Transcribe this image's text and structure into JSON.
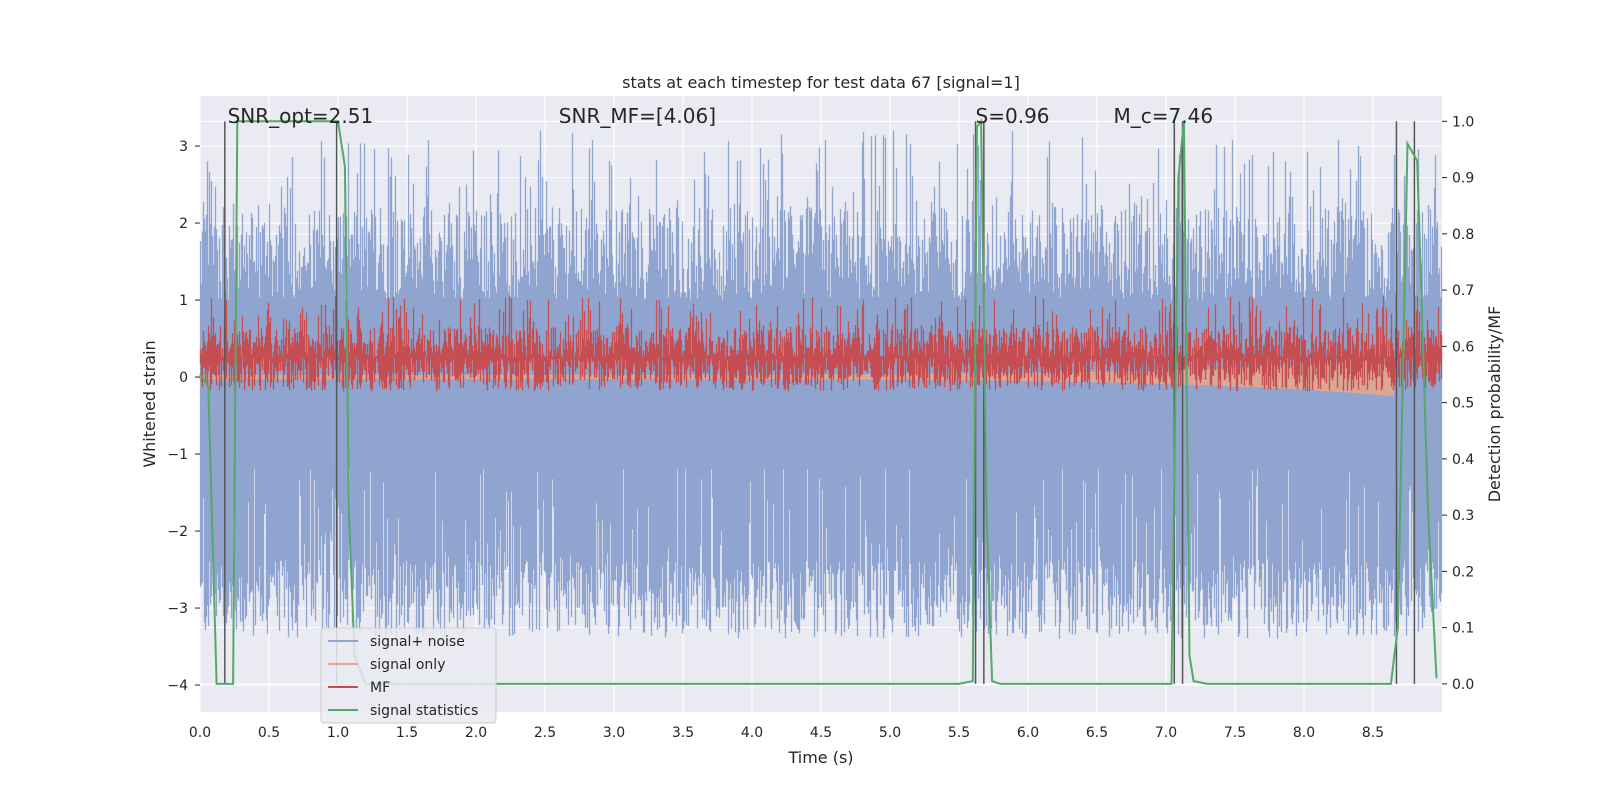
{
  "chart_data": {
    "type": "line",
    "title": "stats at each timestep for test data 67 [signal=1]",
    "xlabel": "Time (s)",
    "ylabel": "Whitened strain",
    "ylabel_right": "Detection probability/MF",
    "xlim": [
      0.0,
      9.0
    ],
    "ylim": [
      -4.35,
      3.65
    ],
    "ylim_right": [
      -0.05,
      1.045
    ],
    "x_ticks": [
      "0.0",
      "0.5",
      "1.0",
      "1.5",
      "2.0",
      "2.5",
      "3.0",
      "3.5",
      "4.0",
      "4.5",
      "5.0",
      "5.5",
      "6.0",
      "6.5",
      "7.0",
      "7.5",
      "8.0",
      "8.5"
    ],
    "y_ticks": [
      "3",
      "2",
      "1",
      "0",
      "−1",
      "−2",
      "−3",
      "−4"
    ],
    "y_ticks_right": [
      "1.0",
      "0.9",
      "0.8",
      "0.7",
      "0.6",
      "0.5",
      "0.4",
      "0.3",
      "0.2",
      "0.1",
      "0.0"
    ],
    "grid": true,
    "legend_position": "lower-left",
    "annotations": [
      {
        "text": "SNR_opt=2.51",
        "x": 0.2
      },
      {
        "text": "SNR_MF=[4.06]",
        "x": 2.6
      },
      {
        "text": "S=0.96",
        "x": 5.62
      },
      {
        "text": "M_c=7.46",
        "x": 6.62
      }
    ],
    "series": [
      {
        "name": "signal+ noise",
        "color": "#8fa5cf",
        "axis": "left",
        "kind": "noise",
        "mean": -0.2,
        "spread_lo": [
          -3.4,
          -1.1
        ],
        "spread_hi": [
          1.0,
          3.2
        ]
      },
      {
        "name": "signal only",
        "color": "#e8a68b",
        "axis": "left",
        "kind": "chirp",
        "t_end": 8.65
      },
      {
        "name": "MF",
        "color": "#c44e52",
        "axis": "right",
        "kind": "noise",
        "base": 0.55,
        "range": [
          0.52,
          0.69
        ]
      },
      {
        "name": "signal statistics",
        "color": "#55a868",
        "axis": "right",
        "x": [
          0.0,
          0.06,
          0.12,
          0.18,
          0.24,
          0.27,
          0.35,
          0.5,
          0.7,
          0.98,
          1.0,
          1.05,
          1.08,
          1.12,
          1.2,
          2.0,
          3.0,
          4.0,
          5.0,
          5.5,
          5.6,
          5.63,
          5.66,
          5.7,
          5.74,
          5.8,
          6.0,
          6.5,
          7.0,
          7.04,
          7.09,
          7.13,
          7.17,
          7.2,
          7.3,
          7.5,
          8.0,
          8.5,
          8.63,
          8.68,
          8.75,
          8.82,
          8.9,
          8.96
        ],
        "y": [
          0.55,
          0.53,
          0.0,
          0.0,
          0.0,
          1.0,
          1.0,
          1.0,
          1.0,
          1.0,
          1.0,
          0.92,
          0.3,
          0.05,
          0.0,
          0.0,
          0.0,
          0.0,
          0.0,
          0.0,
          0.005,
          0.99,
          1.0,
          0.3,
          0.005,
          0.0,
          0.0,
          0.0,
          0.0,
          0.0,
          0.9,
          1.0,
          0.05,
          0.005,
          0.0,
          0.0,
          0.0,
          0.0,
          0.0,
          0.1,
          0.96,
          0.93,
          0.3,
          0.01
        ]
      }
    ],
    "vlines": [
      0.18,
      0.99,
      5.62,
      5.68,
      7.06,
      7.12,
      8.67,
      8.8
    ],
    "legend": [
      "signal+ noise",
      "signal only",
      "MF",
      "signal statistics"
    ]
  }
}
